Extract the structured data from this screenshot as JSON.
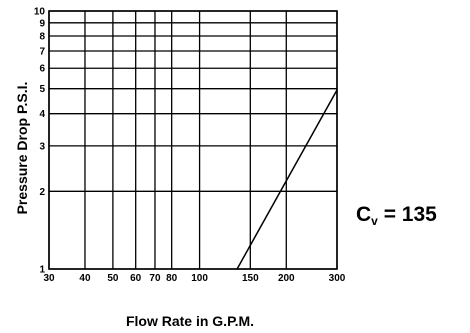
{
  "chart_data": {
    "type": "line",
    "xlabel": "Flow Rate in G.P.M.",
    "ylabel": "Pressure Drop P.S.I.",
    "x_scale": "log",
    "y_scale": "log",
    "xlim": [
      30,
      300
    ],
    "ylim": [
      1,
      10
    ],
    "x_ticks": [
      30,
      40,
      50,
      60,
      70,
      80,
      100,
      150,
      200,
      300
    ],
    "x_tick_labels": [
      "30",
      "40",
      "50",
      "60",
      "70",
      "80",
      "100",
      "150",
      "200",
      "300"
    ],
    "y_ticks": [
      1,
      2,
      3,
      4,
      5,
      6,
      7,
      8,
      9,
      10
    ],
    "y_tick_labels": [
      "1",
      "2",
      "3",
      "4",
      "5",
      "6",
      "7",
      "8",
      "9",
      "10"
    ],
    "grid": true,
    "series": [
      {
        "x": [
          135,
          300
        ],
        "y": [
          1.0,
          4.94
        ]
      }
    ]
  },
  "annotation": {
    "prefix": "C",
    "subscript": "v",
    "suffix": " = 135"
  }
}
